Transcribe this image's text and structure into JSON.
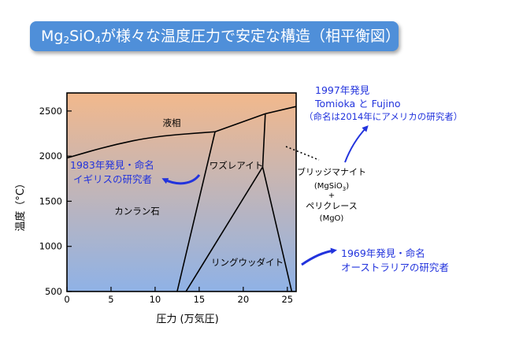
{
  "title": {
    "part1": "Mg",
    "sub1": "2",
    "part2": "SiO",
    "sub2": "4",
    "part3": "が様々な温度圧力で安定な構造（相平衡図）"
  },
  "axes": {
    "xlabel": "圧力 (万気圧)",
    "ylabel": "温度（°C）",
    "xticks": [
      "0",
      "5",
      "10",
      "15",
      "20",
      "25"
    ],
    "yticks": [
      "500",
      "1000",
      "1500",
      "2000",
      "2500"
    ]
  },
  "regions": {
    "liquid": "液相",
    "wadsleyite": "ワズレアイト",
    "forsterite": "カンラン石",
    "ringwoodite": "リングウッダイト",
    "bridgmanite_line1": "ブリッジマナイト",
    "bridgmanite_formula_a": "(MgSiO",
    "bridgmanite_formula_sub": "3",
    "bridgmanite_formula_b": ")",
    "plus": "+",
    "periclase": "ペリクレース",
    "periclase_formula": "(MgO)"
  },
  "annotations": {
    "a1997_line1": "1997年発見",
    "a1997_line2": "Tomioka と Fujino",
    "a1997_line3": "（命名は2014年にアメリカの研究者）",
    "a1983_line1": "1983年発見・命名",
    "a1983_line2": "イギリスの研究者",
    "a1969_line1": "1969年発見・命名",
    "a1969_line2": "オーストラリアの研究者"
  },
  "colors": {
    "banner": "#4f8fd9",
    "annotation": "#2233dd",
    "gradient_top": "#f2b88c",
    "gradient_bottom": "#8fb2e6"
  },
  "chart_data": {
    "type": "phase-diagram",
    "xlim": [
      0,
      26
    ],
    "ylim": [
      500,
      2700
    ],
    "boundaries": [
      {
        "from": "forsterite",
        "to": "liquid",
        "points": [
          [
            0,
            1980
          ],
          [
            5,
            2120
          ],
          [
            10,
            2220
          ],
          [
            16.8,
            2270
          ]
        ]
      },
      {
        "from": "wadsleyite",
        "to": "liquid",
        "points": [
          [
            16.8,
            2270
          ],
          [
            22.5,
            2470
          ]
        ]
      },
      {
        "from": "bridgmanite+periclase",
        "to": "liquid",
        "points": [
          [
            22.5,
            2470
          ],
          [
            26,
            2550
          ]
        ]
      },
      {
        "from": "forsterite",
        "to": "wadsleyite",
        "points": [
          [
            12.5,
            500
          ],
          [
            16.8,
            2270
          ]
        ]
      },
      {
        "from": "wadsleyite",
        "to": "bridgmanite+periclase",
        "points": [
          [
            22.2,
            1880
          ],
          [
            22.5,
            2470
          ]
        ]
      },
      {
        "from": "wadsleyite",
        "to": "ringwoodite",
        "points": [
          [
            13.5,
            500
          ],
          [
            22.2,
            1880
          ]
        ]
      },
      {
        "from": "ringwoodite",
        "to": "bridgmanite+periclase",
        "points": [
          [
            22.2,
            1880
          ],
          [
            25.5,
            500
          ]
        ]
      }
    ]
  }
}
